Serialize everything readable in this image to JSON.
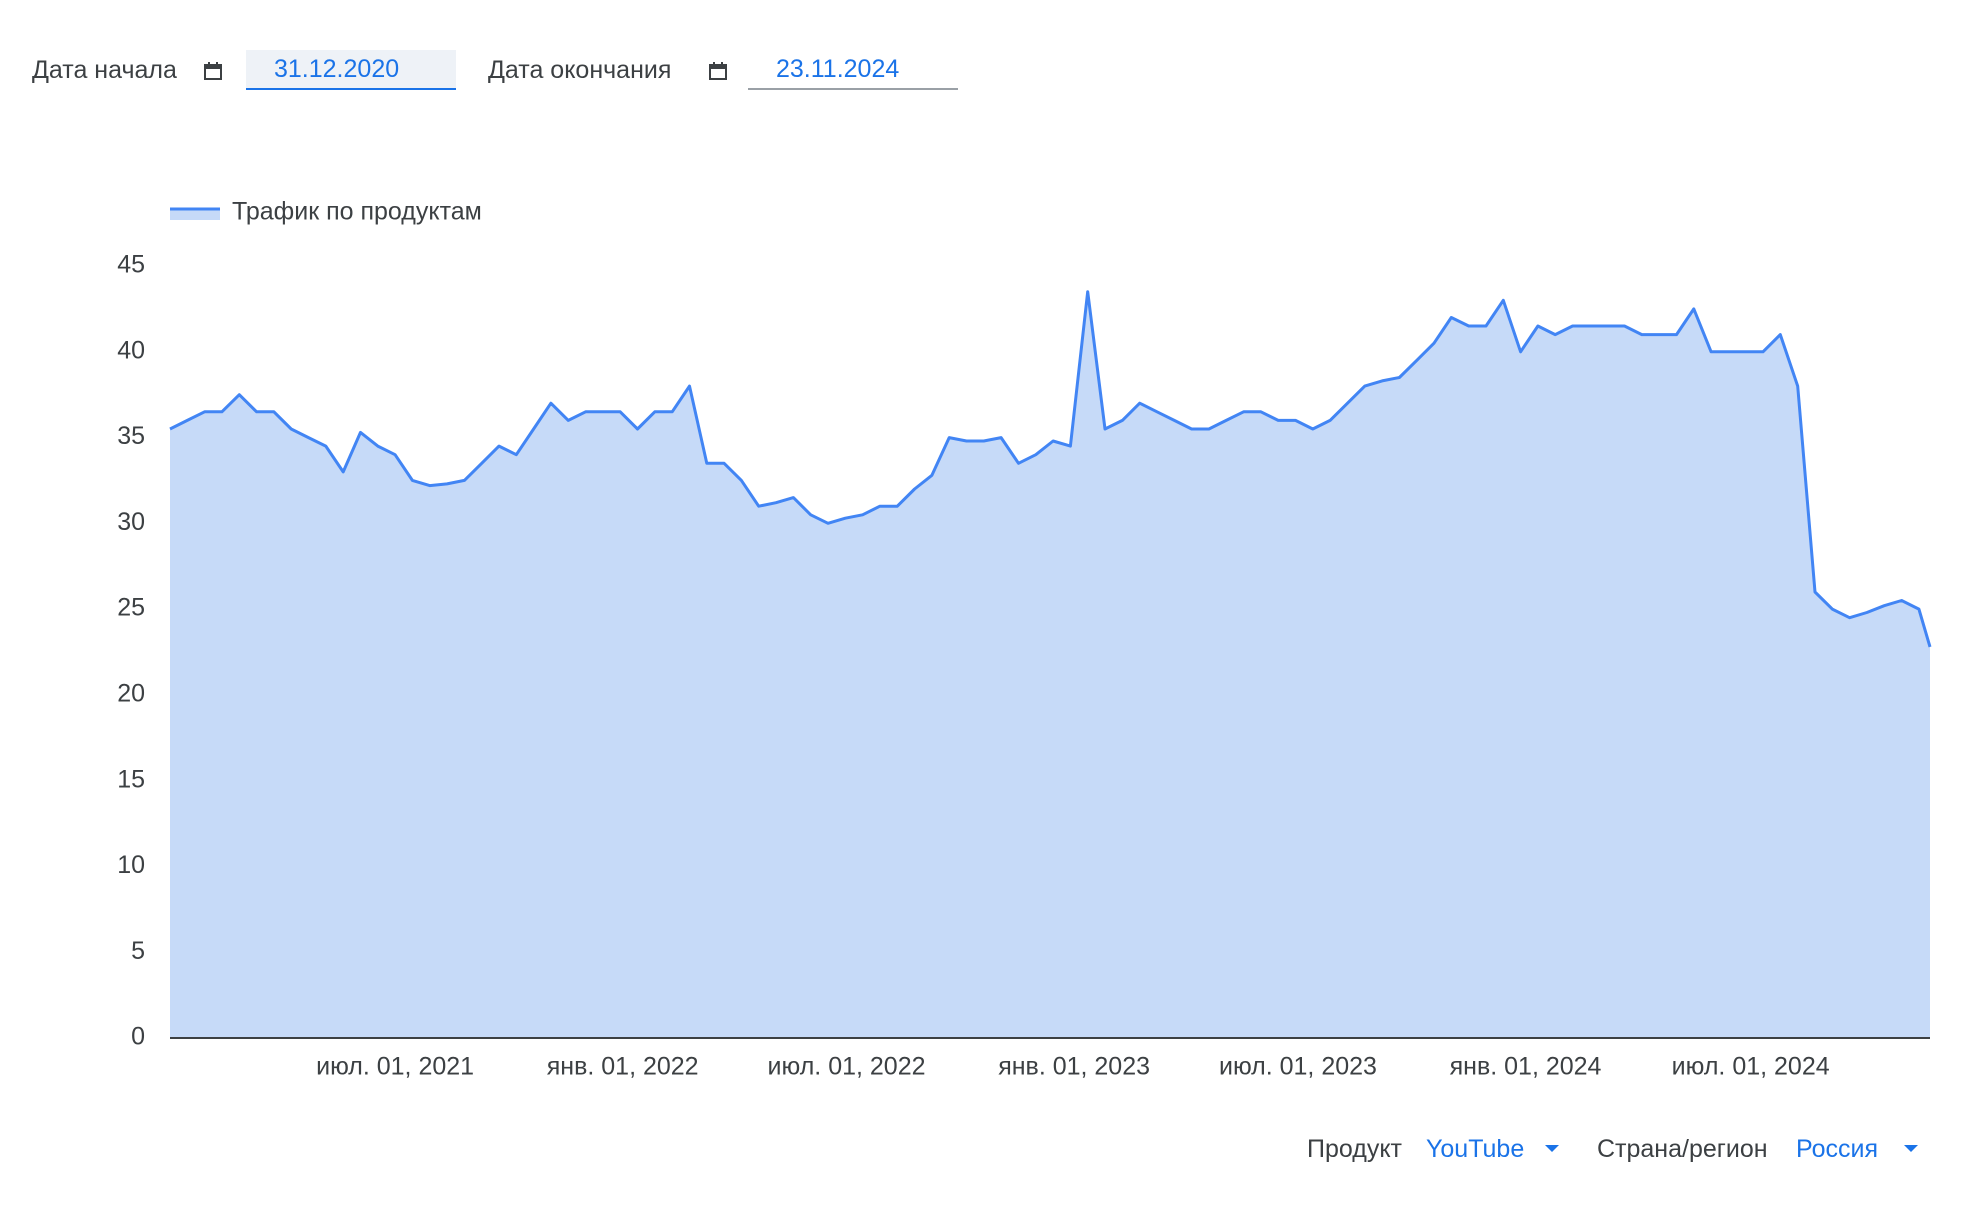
{
  "controls": {
    "start_label": "Дата начала",
    "start_date": "31.12.2020",
    "end_label": "Дата окончания",
    "end_date": "23.11.2024",
    "product_label": "Продукт",
    "product": "YouTube",
    "region_label": "Страна/регион",
    "region": "Россия"
  },
  "chart_data": {
    "type": "area",
    "x": [
      "2020-12-31",
      "2021-01-14",
      "2021-01-28",
      "2021-02-11",
      "2021-02-25",
      "2021-03-11",
      "2021-03-25",
      "2021-04-08",
      "2021-04-22",
      "2021-05-06",
      "2021-05-20",
      "2021-06-03",
      "2021-06-17",
      "2021-07-01",
      "2021-07-15",
      "2021-07-29",
      "2021-08-12",
      "2021-08-26",
      "2021-09-09",
      "2021-09-23",
      "2021-10-07",
      "2021-10-21",
      "2021-11-04",
      "2021-11-18",
      "2021-12-02",
      "2021-12-16",
      "2021-12-30",
      "2022-01-13",
      "2022-01-27",
      "2022-02-10",
      "2022-02-24",
      "2022-03-10",
      "2022-03-24",
      "2022-04-07",
      "2022-04-21",
      "2022-05-05",
      "2022-05-19",
      "2022-06-02",
      "2022-06-16",
      "2022-06-30",
      "2022-07-14",
      "2022-07-28",
      "2022-08-11",
      "2022-08-25",
      "2022-09-08",
      "2022-09-22",
      "2022-10-06",
      "2022-10-20",
      "2022-11-03",
      "2022-11-17",
      "2022-12-01",
      "2022-12-15",
      "2022-12-29",
      "2023-01-12",
      "2023-01-26",
      "2023-02-09",
      "2023-02-23",
      "2023-03-09",
      "2023-03-23",
      "2023-04-06",
      "2023-04-20",
      "2023-05-04",
      "2023-05-18",
      "2023-06-01",
      "2023-06-15",
      "2023-06-29",
      "2023-07-13",
      "2023-07-27",
      "2023-08-10",
      "2023-08-24",
      "2023-09-07",
      "2023-09-21",
      "2023-10-05",
      "2023-10-19",
      "2023-11-02",
      "2023-11-16",
      "2023-11-30",
      "2023-12-14",
      "2023-12-28",
      "2024-01-11",
      "2024-01-25",
      "2024-02-08",
      "2024-02-22",
      "2024-03-07",
      "2024-03-21",
      "2024-04-04",
      "2024-04-18",
      "2024-05-02",
      "2024-05-16",
      "2024-05-30",
      "2024-06-13",
      "2024-06-27",
      "2024-07-11",
      "2024-07-25",
      "2024-08-08",
      "2024-08-22",
      "2024-09-05",
      "2024-09-19",
      "2024-10-03",
      "2024-10-17",
      "2024-10-31",
      "2024-11-14",
      "2024-11-23"
    ],
    "series": [
      {
        "name": "Трафик по продуктам",
        "color": "#4285f4",
        "fill": "#c6daf8",
        "values": [
          35.5,
          36.0,
          36.5,
          36.5,
          37.5,
          36.5,
          36.5,
          35.5,
          35.0,
          34.5,
          33.0,
          35.3,
          34.5,
          34.0,
          32.5,
          32.2,
          32.3,
          32.5,
          33.5,
          34.5,
          34.0,
          35.5,
          37.0,
          36.0,
          36.5,
          36.5,
          36.5,
          35.5,
          36.5,
          36.5,
          38.0,
          33.5,
          33.5,
          32.5,
          31.0,
          31.2,
          31.5,
          30.5,
          30.0,
          30.3,
          30.5,
          31.0,
          31.0,
          32.0,
          32.8,
          35.0,
          34.8,
          34.8,
          35.0,
          33.5,
          34.0,
          34.8,
          34.5,
          43.5,
          35.5,
          36.0,
          37.0,
          36.5,
          36.0,
          35.5,
          35.5,
          36.0,
          36.5,
          36.5,
          36.0,
          36.0,
          35.5,
          36.0,
          37.0,
          38.0,
          38.3,
          38.5,
          39.5,
          40.5,
          42.0,
          41.5,
          41.5,
          43.0,
          40.0,
          41.5,
          41.0,
          41.5,
          41.5,
          41.5,
          41.5,
          41.0,
          41.0,
          41.0,
          42.5,
          40.0,
          40.0,
          40.0,
          40.0,
          41.0,
          38.0,
          26.0,
          25.0,
          24.5,
          24.8,
          25.2,
          25.5,
          25.0,
          22.8
        ]
      }
    ],
    "xlim": [
      "2020-12-31",
      "2024-11-23"
    ],
    "xticks": [
      {
        "value": "2021-07-01",
        "label": "июл. 01, 2021"
      },
      {
        "value": "2022-01-01",
        "label": "янв. 01, 2022"
      },
      {
        "value": "2022-07-01",
        "label": "июл. 01, 2022"
      },
      {
        "value": "2023-01-01",
        "label": "янв. 01, 2023"
      },
      {
        "value": "2023-07-01",
        "label": "июл. 01, 2023"
      },
      {
        "value": "2024-01-01",
        "label": "янв. 01, 2024"
      },
      {
        "value": "2024-07-01",
        "label": "июл. 01, 2024"
      }
    ],
    "ylim": [
      0,
      45
    ],
    "yticks": [
      0,
      5,
      10,
      15,
      20,
      25,
      30,
      35,
      40,
      45
    ],
    "grid": false,
    "legend": "top-left"
  }
}
